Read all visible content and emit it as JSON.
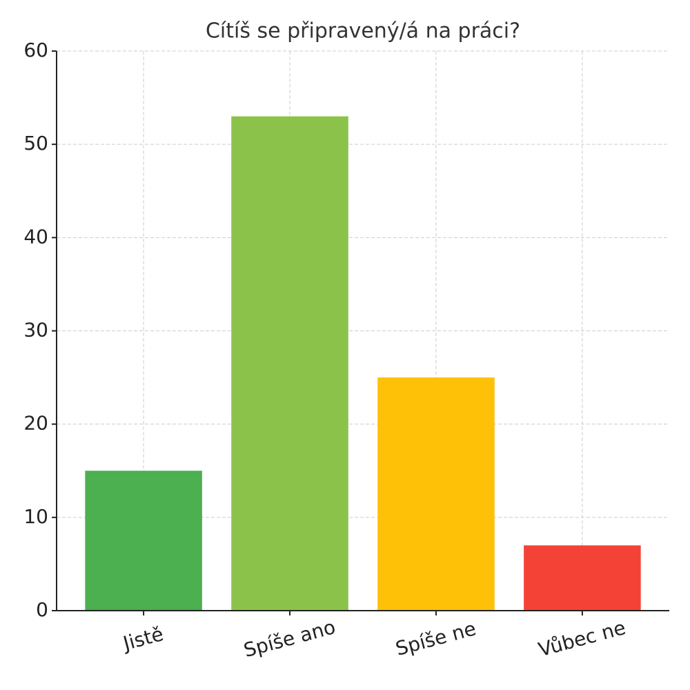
{
  "chart_data": {
    "type": "bar",
    "title": "Cítíš se připravený/á na práci?",
    "categories": [
      "Jistě",
      "Spíše ano",
      "Spíše ne",
      "Vůbec ne"
    ],
    "values": [
      15,
      53,
      25,
      7
    ],
    "colors": [
      "#4caf50",
      "#8bc34a",
      "#ffc107",
      "#f44336"
    ],
    "ylim": [
      0,
      60
    ],
    "yticks": [
      0,
      10,
      20,
      30,
      40,
      50,
      60
    ],
    "grid": true
  }
}
